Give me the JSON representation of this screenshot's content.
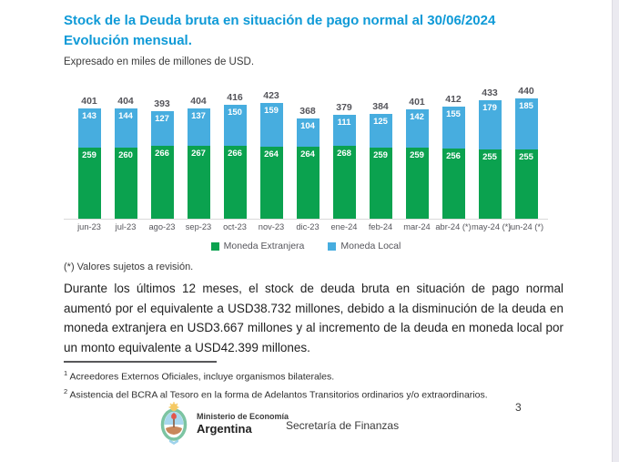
{
  "page": {
    "title_line1": "Stock de la Deuda bruta en situación de pago normal al 30/06/2024",
    "title_line2": "Evolución mensual.",
    "subtitle": "Expresado en miles de millones de USD.",
    "footnote_star": "(*) Valores sujetos a revisión.",
    "paragraph": "Durante los últimos 12 meses, el stock de deuda bruta en situación de pago normal aumentó por el equivalente a USD38.732 millones, debido a la disminución de la deuda en moneda extranjera en USD3.667 millones y al incremento de la deuda en moneda local por un monto equivalente a USD42.399 millones.",
    "footnotes": [
      {
        "marker": "1",
        "text": "Acreedores Externos Oficiales, incluye organismos bilaterales."
      },
      {
        "marker": "2",
        "text": "Asistencia del BCRA al Tesoro en la forma de Adelantos Transitorios ordinarios y/o extraordinarios."
      }
    ],
    "page_number": "3"
  },
  "footer": {
    "ministry_small": "Ministerio de Economía",
    "ministry_big": "Argentina",
    "secretariat": "Secretaría de Finanzas"
  },
  "colors": {
    "title_blue": "#0F9AD7",
    "bar_green": "#0BA24F",
    "bar_blue": "#47ADDF",
    "total_label_gray": "#55555B"
  },
  "chart_data": {
    "type": "bar",
    "stacked": true,
    "title": "Stock de la Deuda bruta en situación de pago normal al 30/06/2024. Evolución mensual.",
    "unit": "miles de millones de USD",
    "categories": [
      "jun-23",
      "jul-23",
      "ago-23",
      "sep-23",
      "oct-23",
      "nov-23",
      "dic-23",
      "ene-24",
      "feb-24",
      "mar-24",
      "abr-24 (*)",
      "may-24 (*)",
      "jun-24 (*)"
    ],
    "series": [
      {
        "name": "Moneda Extranjera",
        "color": "#0BA24F",
        "values": [
          259,
          260,
          266,
          267,
          266,
          264,
          264,
          268,
          259,
          259,
          256,
          255,
          255
        ]
      },
      {
        "name": "Moneda Local",
        "color": "#47ADDF",
        "values": [
          143,
          144,
          127,
          137,
          150,
          159,
          104,
          111,
          125,
          142,
          155,
          179,
          185
        ]
      }
    ],
    "totals": [
      401,
      404,
      393,
      404,
      416,
      423,
      368,
      379,
      384,
      401,
      412,
      433,
      440
    ],
    "ylim": [
      0,
      460
    ],
    "grid": false,
    "legend_position": "bottom"
  }
}
